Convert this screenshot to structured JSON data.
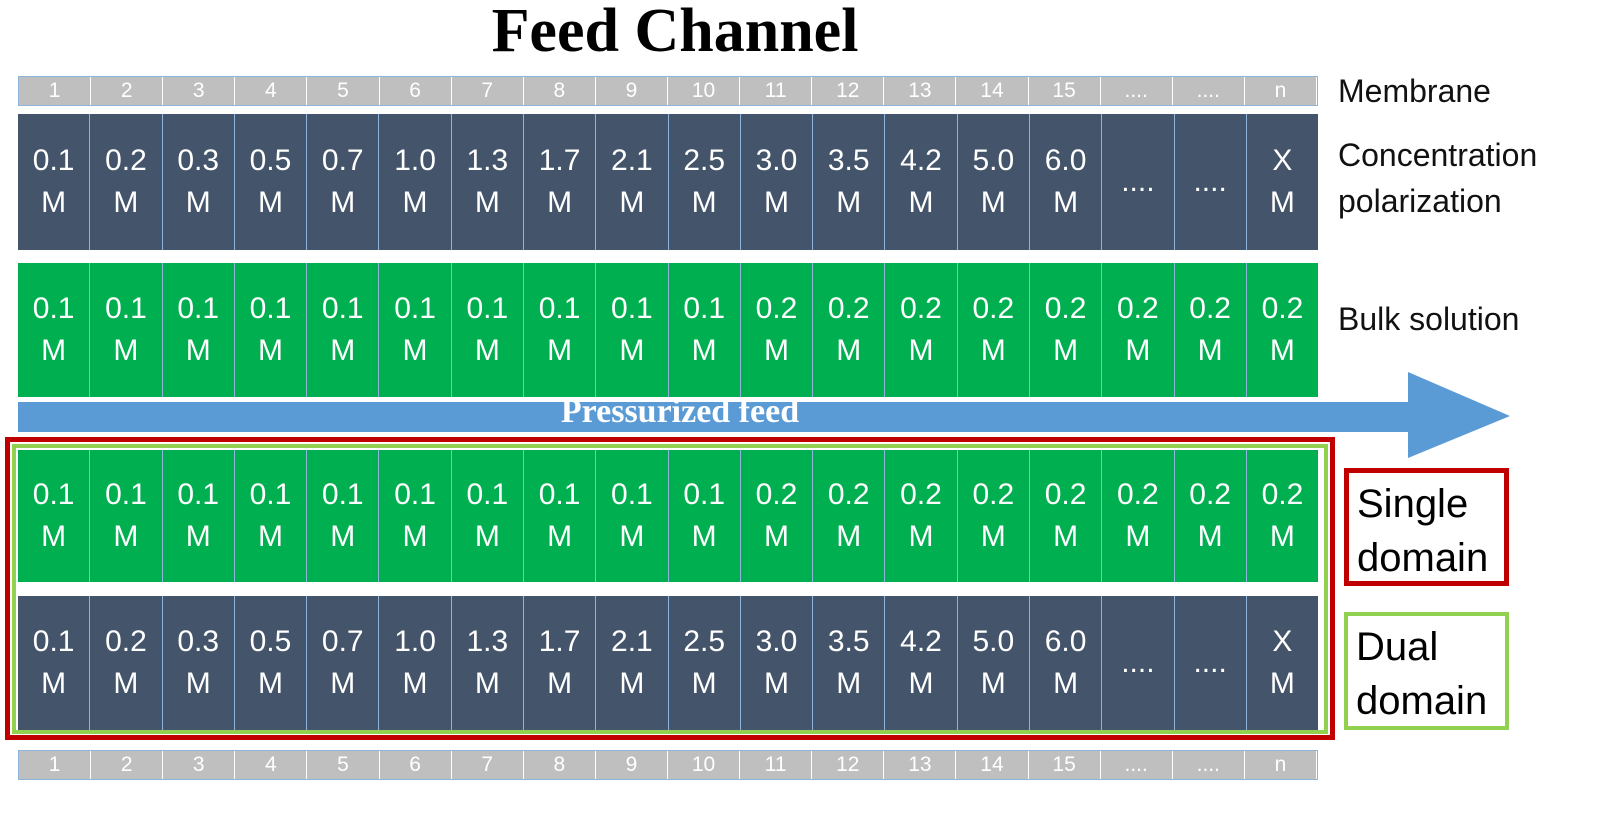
{
  "title": "Feed Channel",
  "labels": {
    "membrane": "Membrane",
    "concentration_line1": "Concentration",
    "concentration_line2": "polarization",
    "bulk": "Bulk solution",
    "arrow": "Pressurized feed"
  },
  "legend": {
    "single_line1": "Single",
    "single_line2": "domain",
    "dual_line1": "Dual",
    "dual_line2": "domain"
  },
  "colors": {
    "dark_cell": "#44546a",
    "green_cell": "#00b050",
    "number_cell": "#bfbfbf",
    "arrow": "#5b9bd5",
    "single_domain_border": "#c00000",
    "dual_domain_border": "#92d050"
  },
  "segment_numbers": [
    "1",
    "2",
    "3",
    "4",
    "5",
    "6",
    "7",
    "8",
    "9",
    "10",
    "11",
    "12",
    "13",
    "14",
    "15",
    "....",
    "....",
    "n"
  ],
  "concentration_polarization": [
    [
      "0.1",
      "M"
    ],
    [
      "0.2",
      "M"
    ],
    [
      "0.3",
      "M"
    ],
    [
      "0.5",
      "M"
    ],
    [
      "0.7",
      "M"
    ],
    [
      "1.0",
      "M"
    ],
    [
      "1.3",
      "M"
    ],
    [
      "1.7",
      "M"
    ],
    [
      "2.1",
      "M"
    ],
    [
      "2.5",
      "M"
    ],
    [
      "3.0",
      "M"
    ],
    [
      "3.5",
      "M"
    ],
    [
      "4.2",
      "M"
    ],
    [
      "5.0",
      "M"
    ],
    [
      "6.0",
      "M"
    ],
    [
      "....",
      ""
    ],
    [
      "....",
      ""
    ],
    [
      "X",
      "M"
    ]
  ],
  "bulk_solution": [
    [
      "0.1",
      "M"
    ],
    [
      "0.1",
      "M"
    ],
    [
      "0.1",
      "M"
    ],
    [
      "0.1",
      "M"
    ],
    [
      "0.1",
      "M"
    ],
    [
      "0.1",
      "M"
    ],
    [
      "0.1",
      "M"
    ],
    [
      "0.1",
      "M"
    ],
    [
      "0.1",
      "M"
    ],
    [
      "0.1",
      "M"
    ],
    [
      "0.2",
      "M"
    ],
    [
      "0.2",
      "M"
    ],
    [
      "0.2",
      "M"
    ],
    [
      "0.2",
      "M"
    ],
    [
      "0.2",
      "M"
    ],
    [
      "0.2",
      "M"
    ],
    [
      "0.2",
      "M"
    ],
    [
      "0.2",
      "M"
    ]
  ]
}
